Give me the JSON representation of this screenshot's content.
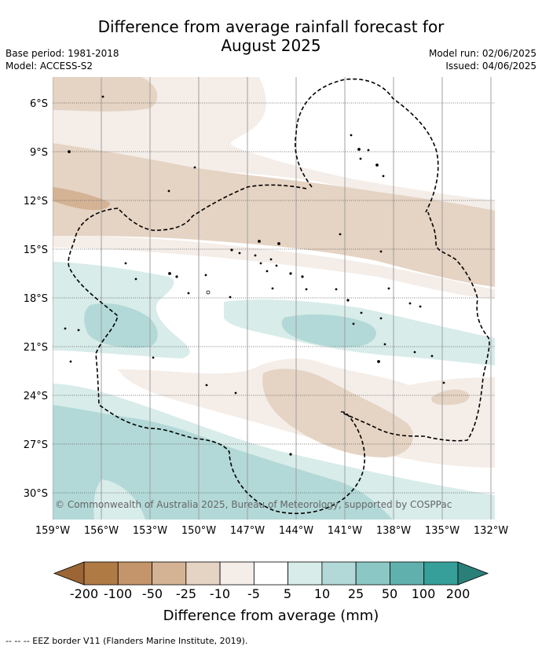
{
  "title": "Difference from average rainfall forecast for August 2025",
  "title_line1": "Difference from average rainfall forecast for",
  "title_line2": "August 2025",
  "base_period": "Base period: 1981-2018",
  "model": "Model: ACCESS-S2",
  "model_run": "Model run: 02/06/2025",
  "issued": "Issued: 04/06/2025",
  "copyright": "© Commonwealth of Australia 2025, Bureau of Meteorology, supported by COSPPac",
  "lat_labels": [
    "6°S",
    "9°S",
    "12°S",
    "15°S",
    "18°S",
    "21°S",
    "24°S",
    "27°S",
    "30°S"
  ],
  "lon_labels": [
    "159°W",
    "156°W",
    "153°W",
    "150°W",
    "147°W",
    "144°W",
    "141°W",
    "138°W",
    "135°W",
    "132°W"
  ],
  "colorbar": {
    "title": "Difference from average (mm)",
    "ticks": [
      "-200",
      "-100",
      "-50",
      "-25",
      "-10",
      "-5",
      "5",
      "10",
      "25",
      "50",
      "100",
      "200"
    ],
    "colors": [
      "#9b6535",
      "#b07a45",
      "#c4956a",
      "#d4b395",
      "#e5d3c3",
      "#f4ede8",
      "#ffffff",
      "#d8ecea",
      "#b2d9d7",
      "#8bc7c4",
      "#60b1ad",
      "#369f9a",
      "#2a8079"
    ]
  },
  "footnote": "-- -- -- EEZ border V11 (Flanders Marine Institute, 2019)."
}
